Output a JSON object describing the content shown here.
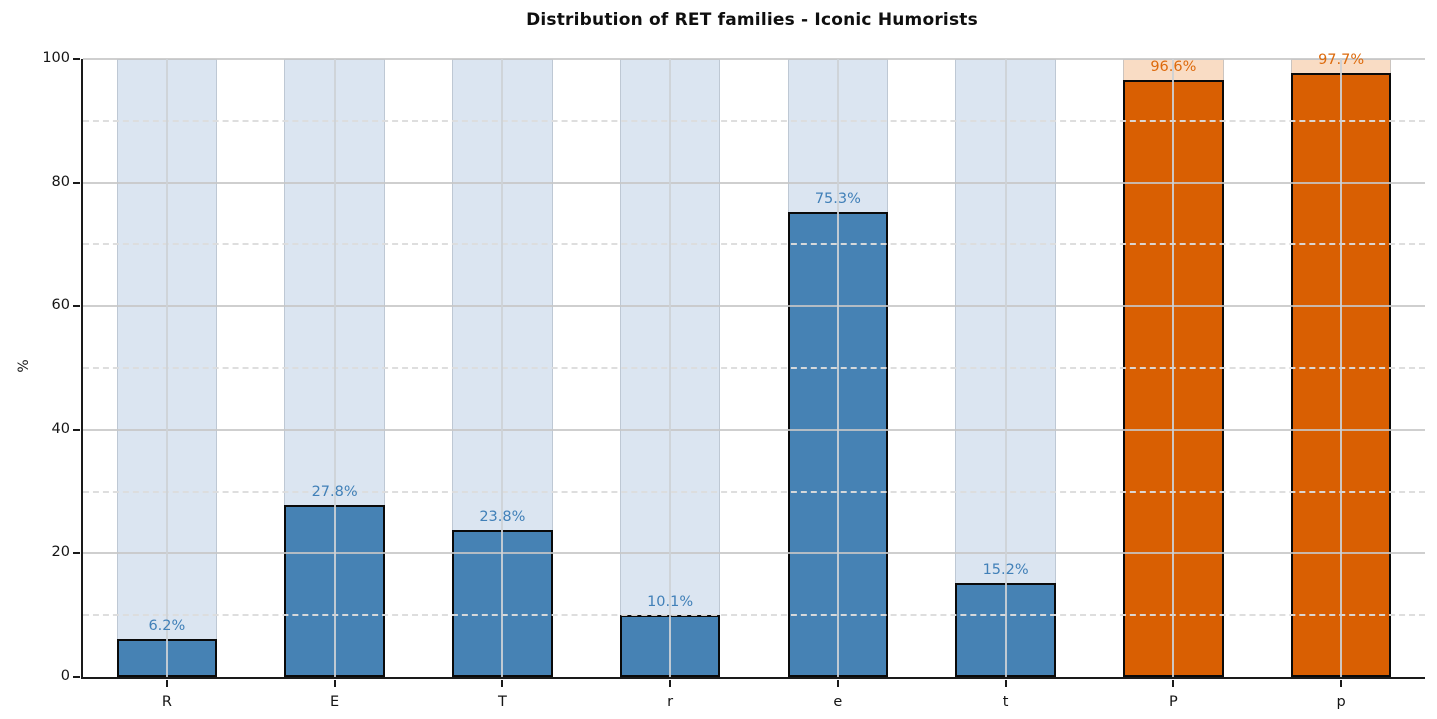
{
  "figure": {
    "title": "Distribution of RET families - Iconic Humorists",
    "ylabel": "%"
  },
  "chart_data": {
    "type": "bar",
    "title": "Distribution of RET families - Iconic Humorists",
    "xlabel": "",
    "ylabel": "%",
    "ylim": [
      0,
      100
    ],
    "yticks_major": [
      0,
      20,
      40,
      60,
      80,
      100
    ],
    "yticks_minor_dashed": [
      10,
      30,
      50,
      70,
      90
    ],
    "y_tick_labels": [
      "0",
      "20",
      "40",
      "60",
      "80",
      "100"
    ],
    "grid": "horizontal major solid + minor dashed; vertical gridline at each bar center",
    "legend": "none",
    "categories": [
      "R",
      "E",
      "T",
      "r",
      "e",
      "t",
      "P",
      "p"
    ],
    "values": [
      6.2,
      27.8,
      23.8,
      10.1,
      75.3,
      15.2,
      96.6,
      97.7
    ],
    "bar_labels": [
      "6.2%",
      "27.8%",
      "23.8%",
      "10.1%",
      "75.3%",
      "15.2%",
      "96.6%",
      "97.7%"
    ],
    "background_bar_value": 100,
    "bar_colors": [
      "#4682b4",
      "#4682b4",
      "#4682b4",
      "#4682b4",
      "#4682b4",
      "#4682b4",
      "#d95f02",
      "#d95f02"
    ],
    "background_bar_colors": [
      "#dbe5f1",
      "#dbe5f1",
      "#dbe5f1",
      "#dbe5f1",
      "#dbe5f1",
      "#dbe5f1",
      "#f9dcc4",
      "#f9dcc4"
    ],
    "label_colors": [
      "#4180b8",
      "#4180b8",
      "#4180b8",
      "#4180b8",
      "#4180b8",
      "#4180b8",
      "#dd6a0c",
      "#dd6a0c"
    ],
    "bar_edge_color": "#0a0a0a",
    "colors": {
      "primary_blue": "#4682b4",
      "primary_blue_background": "#dbe5f1",
      "secondary_orange": "#d95f02",
      "secondary_orange_background": "#f9dcc4",
      "gridline_major": "#c7c7c7",
      "gridline_minor": "#dddddd",
      "axis_spine": "#1a1a1a"
    }
  }
}
